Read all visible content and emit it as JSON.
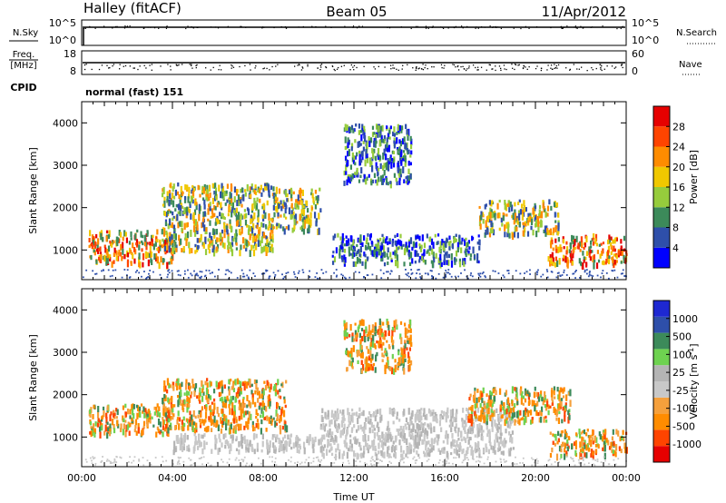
{
  "header": {
    "title_left": "Halley (fitACF)",
    "title_center": "Beam 05",
    "title_right": "11/Apr/2012"
  },
  "status_panels": {
    "nsky_label": "N.Sky",
    "nsky_ticks": [
      "10^5",
      "10^0"
    ],
    "nsearch_label": "N.Search",
    "nsearch_ticks": [
      "10^5",
      "10^0"
    ],
    "freq_label": "Freq.",
    "freq_unit": "[MHz]",
    "freq_ticks": [
      "18",
      "8"
    ],
    "nave_label": "Nave",
    "nave_ticks": [
      "60",
      "0"
    ],
    "cpid_label": "CPID",
    "cpid_value": "normal (fast) 151"
  },
  "chart_data": [
    {
      "type": "heatmap",
      "name": "power",
      "ylabel": "Slant Range [km]",
      "ylim": [
        300,
        4500
      ],
      "yticks": [
        "1000",
        "2000",
        "3000",
        "4000"
      ],
      "xlim_hours": [
        0,
        24
      ],
      "colorbar": {
        "label": "Power [dB]",
        "ticks": [
          "28",
          "24",
          "20",
          "16",
          "12",
          "8",
          "4"
        ],
        "colors": [
          "#0000ff",
          "#2e4faa",
          "#3c8a5a",
          "#96cc3c",
          "#f0c800",
          "#ff8c00",
          "#ff4400",
          "#e60000"
        ]
      },
      "echo_regions": [
        {
          "t": [
            0.3,
            4.0
          ],
          "r": [
            700,
            1500
          ],
          "level": "high"
        },
        {
          "t": [
            3.5,
            8.5
          ],
          "r": [
            1000,
            2600
          ],
          "level": "medium"
        },
        {
          "t": [
            8.5,
            10.5
          ],
          "r": [
            1500,
            2500
          ],
          "level": "medium"
        },
        {
          "t": [
            11.5,
            14.5
          ],
          "r": [
            2600,
            4000
          ],
          "level": "low"
        },
        {
          "t": [
            11.0,
            17.5
          ],
          "r": [
            700,
            1400
          ],
          "level": "low"
        },
        {
          "t": [
            17.5,
            21.0
          ],
          "r": [
            1400,
            2200
          ],
          "level": "medium"
        },
        {
          "t": [
            20.5,
            24.0
          ],
          "r": [
            700,
            1400
          ],
          "level": "high"
        }
      ]
    },
    {
      "type": "heatmap",
      "name": "velocity",
      "ylabel": "Slant Range [km]",
      "ylim": [
        300,
        4500
      ],
      "yticks": [
        "1000",
        "2000",
        "3000",
        "4000"
      ],
      "xlabel": "Time UT",
      "xticks": [
        "00:00",
        "04:00",
        "08:00",
        "12:00",
        "16:00",
        "20:00",
        "00:00"
      ],
      "colorbar": {
        "label": "Velocity [m s",
        "label_sup": "-1",
        "label_end": "]",
        "ticks": [
          "1000",
          "500",
          "100",
          "25",
          "-25",
          "-100",
          "-500",
          "-1000"
        ],
        "colors": [
          "#e60000",
          "#ff4400",
          "#ff8c00",
          "#f5a03c",
          "#c8c8c8",
          "#b4b4b4",
          "#6ed250",
          "#3c8a5a",
          "#2e4faa",
          "#1e28d2"
        ]
      },
      "echo_regions": [
        {
          "t": [
            0.3,
            4.0
          ],
          "r": [
            1100,
            1800
          ],
          "level": "toward"
        },
        {
          "t": [
            3.5,
            9.0
          ],
          "r": [
            1200,
            2400
          ],
          "level": "toward"
        },
        {
          "t": [
            4.0,
            11.0
          ],
          "r": [
            700,
            1100
          ],
          "level": "ground"
        },
        {
          "t": [
            11.5,
            14.5
          ],
          "r": [
            2600,
            3800
          ],
          "level": "toward"
        },
        {
          "t": [
            10.5,
            19.0
          ],
          "r": [
            600,
            1700
          ],
          "level": "ground"
        },
        {
          "t": [
            17.0,
            21.5
          ],
          "r": [
            1400,
            2200
          ],
          "level": "toward"
        },
        {
          "t": [
            20.5,
            24.0
          ],
          "r": [
            600,
            1200
          ],
          "level": "toward"
        }
      ]
    }
  ]
}
